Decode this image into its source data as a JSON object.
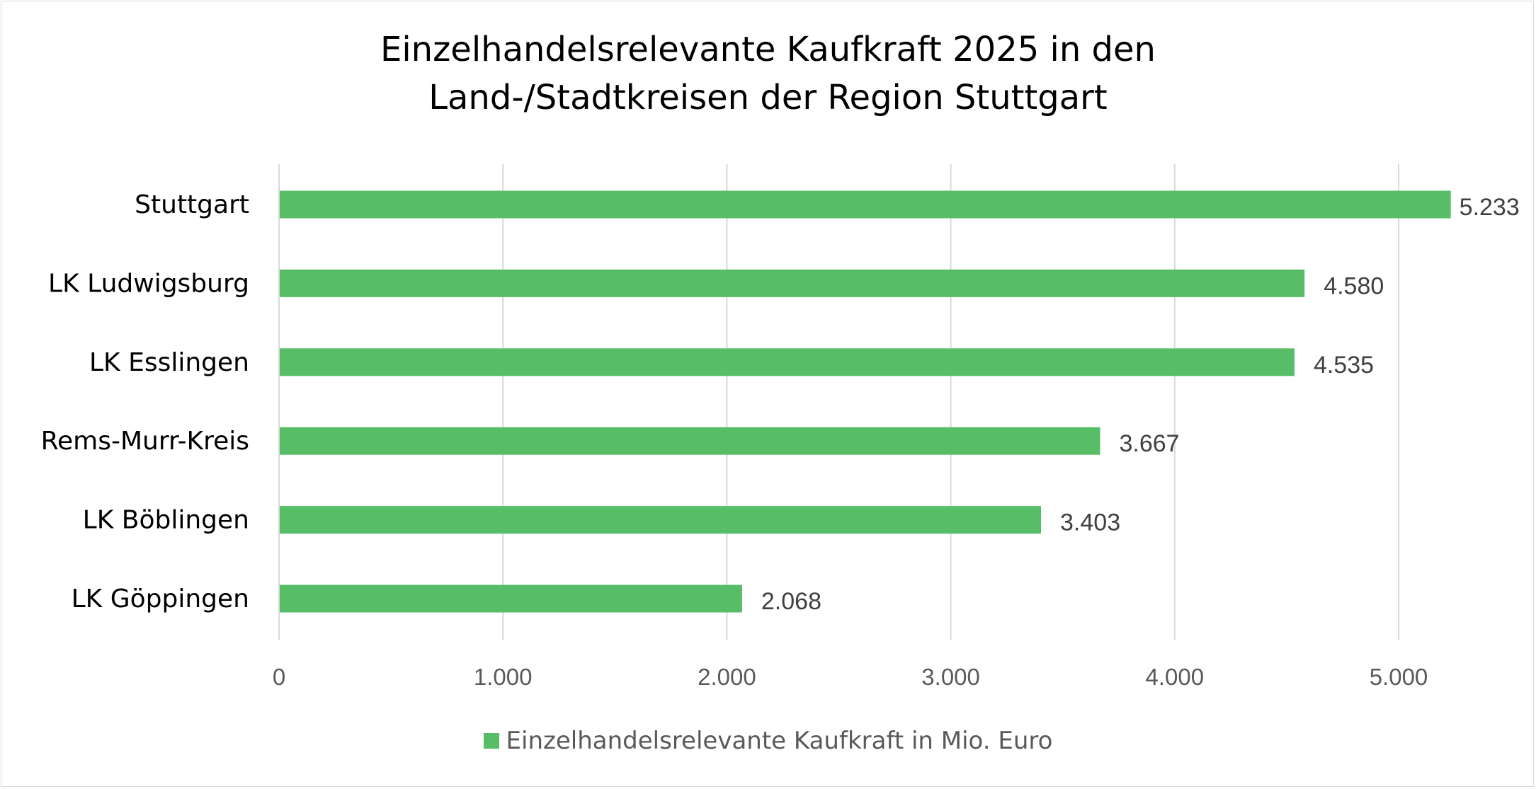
{
  "chart_data": {
    "type": "bar",
    "orientation": "horizontal",
    "title_lines": [
      "Einzelhandelsrelevante Kaufkraft 2025 in den",
      "Land-/Stadtkreisen der Region Stuttgart"
    ],
    "categories": [
      "Stuttgart",
      "LK Ludwigsburg",
      "LK Esslingen",
      "Rems-Murr-Kreis",
      "LK Böblingen",
      "LK Göppingen"
    ],
    "series": [
      {
        "name": "Einzelhandelsrelevante Kaufkraft in Mio. Euro",
        "values": [
          5233,
          4580,
          4535,
          3667,
          3403,
          2068
        ],
        "data_labels": [
          "5.233",
          "4.580",
          "4.535",
          "3.667",
          "3.403",
          "2.068"
        ],
        "color": "#57bd66"
      }
    ],
    "x_ticks": [
      0,
      1000,
      2000,
      3000,
      4000,
      5000
    ],
    "x_tick_labels": [
      "0",
      "1.000",
      "2.000",
      "3.000",
      "4.000",
      "5.000"
    ],
    "xlim": [
      0,
      5500
    ],
    "grid": true,
    "legend_position": "bottom",
    "xlabel": "",
    "ylabel": ""
  },
  "colors": {
    "bar": "#57bd66",
    "grid": "#d9d9d9",
    "axis": "#d9d9d9",
    "category_text": "#000000",
    "tick_text": "#595959",
    "data_label_text": "#404040"
  }
}
